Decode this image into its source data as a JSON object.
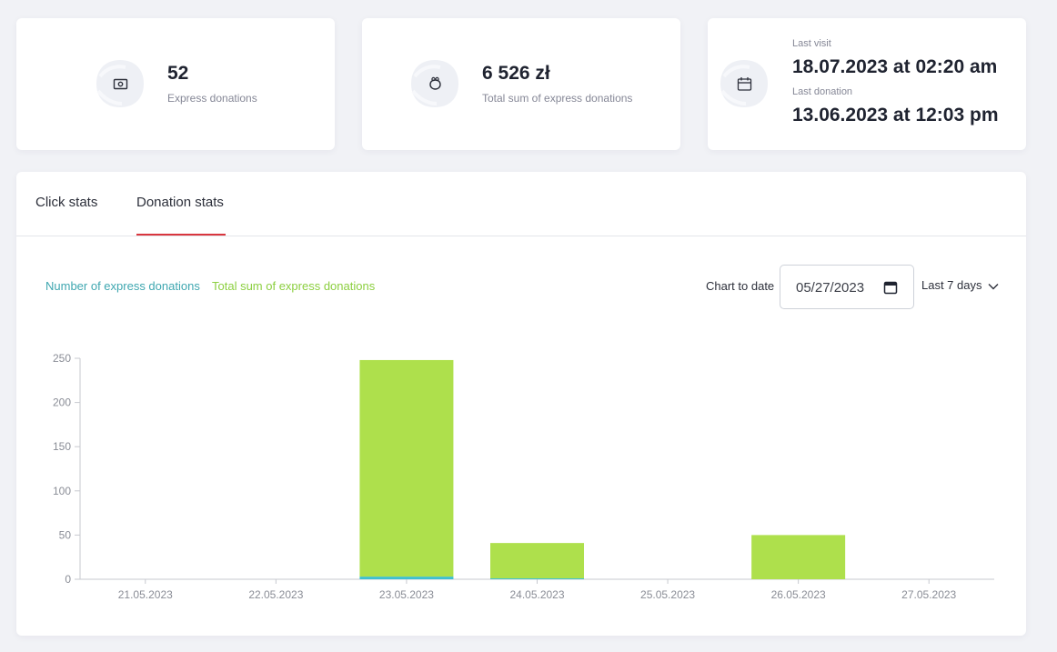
{
  "stats": {
    "express_count": {
      "value": "52",
      "label": "Express donations",
      "icon": "money-icon"
    },
    "express_sum": {
      "value": "6 526 zł",
      "label": "Total sum of express donations",
      "icon": "piggy-bank-icon"
    },
    "visits": {
      "icon": "calendar-icon",
      "last_visit_label": "Last visit",
      "last_visit_value": "18.07.2023 at 02:20 am",
      "last_donation_label": "Last donation",
      "last_donation_value": "13.06.2023 at 12:03 pm"
    }
  },
  "tabs": [
    {
      "label": "Click stats",
      "active": false
    },
    {
      "label": "Donation stats",
      "active": true
    }
  ],
  "controls": {
    "legend_count": "Number of express donations",
    "legend_sum": "Total sum of express donations",
    "chart_to_date_label": "Chart to date",
    "date_value": "05/27/2023",
    "range_value": "Last 7 days"
  },
  "colors": {
    "accent_red": "#d9363e",
    "count_series": "#3fbfd0",
    "sum_series": "#aee04c",
    "legend_count": "#3fa7b0",
    "legend_sum": "#8ccf40"
  },
  "chart_data": {
    "type": "bar",
    "stacked": true,
    "categories": [
      "21.05.2023",
      "22.05.2023",
      "23.05.2023",
      "24.05.2023",
      "25.05.2023",
      "26.05.2023",
      "27.05.2023"
    ],
    "series": [
      {
        "name": "Number of express donations",
        "values": [
          0,
          0,
          3,
          1,
          0,
          0,
          0
        ]
      },
      {
        "name": "Total sum of express donations",
        "values": [
          0,
          0,
          245,
          40,
          0,
          50,
          0
        ]
      }
    ],
    "ylim": [
      0,
      250
    ],
    "yticks": [
      0,
      50,
      100,
      150,
      200,
      250
    ],
    "xlabel": "",
    "ylabel": "",
    "grid": false,
    "legend": "top-left"
  }
}
